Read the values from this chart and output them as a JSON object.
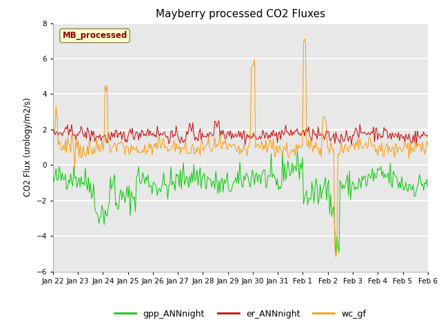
{
  "title": "Mayberry processed CO2 Fluxes",
  "ylabel": "CO2 Flux (urology/m2/s)",
  "ylim": [
    -6,
    8
  ],
  "yticks": [
    -6,
    -4,
    -2,
    0,
    2,
    4,
    6,
    8
  ],
  "plot_bg_color": "#e8e8e8",
  "fig_bg_color": "#ffffff",
  "grid_color": "white",
  "annotation_text": "MB_processed",
  "annotation_color": "#8B0000",
  "annotation_bg": "#ffffcc",
  "annotation_border": "#999966",
  "line_colors": {
    "gpp": "#00cc00",
    "er": "#cc0000",
    "wc": "#ff9900"
  },
  "legend_labels": [
    "gpp_ANNnight",
    "er_ANNnight",
    "wc_gf"
  ],
  "seed": 42,
  "n_points": 360,
  "x_tick_labels": [
    "Jan 22",
    "Jan 23",
    "Jan 24",
    "Jan 25",
    "Jan 26",
    "Jan 27",
    "Jan 28",
    "Jan 29",
    "Jan 30",
    "Jan 31",
    "Feb 1",
    "Feb 2",
    "Feb 3",
    "Feb 4",
    "Feb 5",
    "Feb 6"
  ]
}
